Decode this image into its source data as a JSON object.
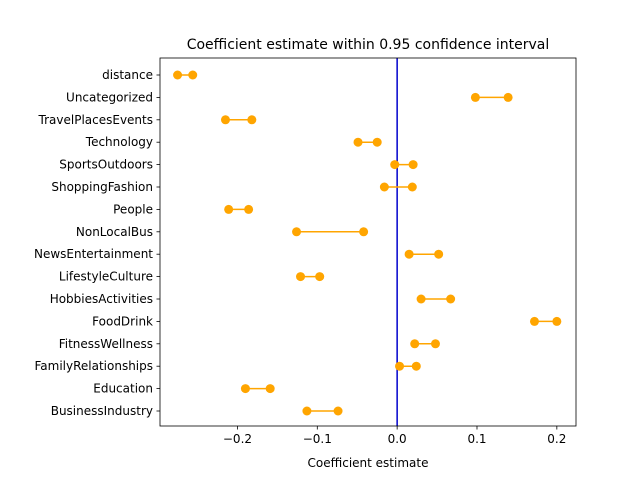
{
  "chart_data": {
    "type": "dumbbell",
    "title": "Coefficient estimate within 0.95 confidence interval",
    "xlabel": "Coefficient estimate",
    "ylabel": "",
    "xlim": [
      -0.297,
      0.224
    ],
    "xticks": [
      -0.2,
      -0.1,
      0.0,
      0.1,
      0.2
    ],
    "xtick_labels": [
      "−0.2",
      "−0.1",
      "0.0",
      "0.1",
      "0.2"
    ],
    "reference_line": {
      "x": 0.0,
      "color": "#0000cc"
    },
    "interval_color": "#ffa500",
    "grid": false,
    "categories": [
      "distance",
      "Uncategorized",
      "TravelPlacesEvents",
      "Technology",
      "SportsOutdoors",
      "ShoppingFashion",
      "People",
      "NonLocalBus",
      "NewsEntertainment",
      "LifestyleCulture",
      "HobbiesActivities",
      "FoodDrink",
      "FitnessWellness",
      "FamilyRelationships",
      "Education",
      "BusinessIndustry"
    ],
    "intervals": [
      {
        "low": -0.275,
        "high": -0.256
      },
      {
        "low": 0.098,
        "high": 0.139
      },
      {
        "low": -0.215,
        "high": -0.182
      },
      {
        "low": -0.049,
        "high": -0.025
      },
      {
        "low": -0.003,
        "high": 0.02
      },
      {
        "low": -0.016,
        "high": 0.019
      },
      {
        "low": -0.211,
        "high": -0.186
      },
      {
        "low": -0.126,
        "high": -0.042
      },
      {
        "low": 0.015,
        "high": 0.052
      },
      {
        "low": -0.121,
        "high": -0.097
      },
      {
        "low": 0.03,
        "high": 0.067
      },
      {
        "low": 0.172,
        "high": 0.2
      },
      {
        "low": 0.022,
        "high": 0.048
      },
      {
        "low": 0.003,
        "high": 0.024
      },
      {
        "low": -0.19,
        "high": -0.159
      },
      {
        "low": -0.113,
        "high": -0.074
      }
    ]
  }
}
